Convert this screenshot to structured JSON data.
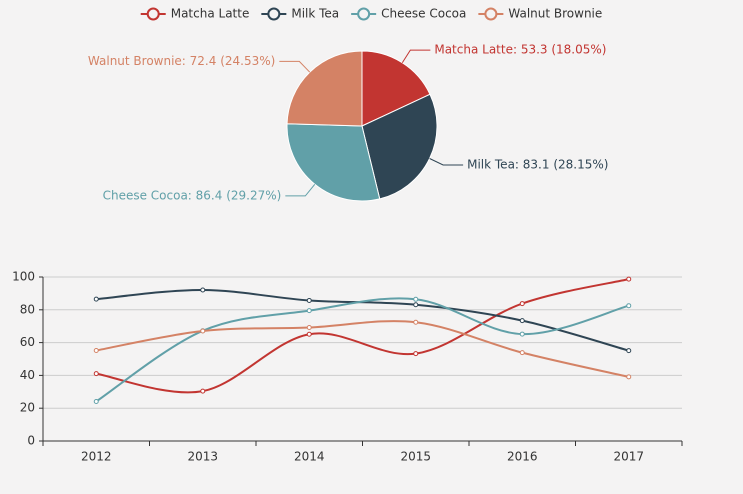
{
  "chart_data": [
    {
      "type": "pie",
      "values": [
        53.3,
        83.1,
        86.4,
        72.4
      ],
      "value_labels": [
        "Matcha Latte: 53.3 (18.05%)",
        "Milk Tea: 83.1 (28.15%)",
        "Cheese Cocoa: 86.4 (29.27%)",
        "Walnut Brownie: 72.4 (24.53%)"
      ],
      "colors": [
        "#c23531",
        "#2f4554",
        "#61a0a8",
        "#d48265"
      ]
    },
    {
      "type": "line",
      "categories": [
        "2012",
        "2013",
        "2014",
        "2015",
        "2016",
        "2017"
      ],
      "series": [
        {
          "name": "Matcha Latte",
          "color": "#c23531",
          "values": [
            41.1,
            30.4,
            65.1,
            53.3,
            83.8,
            98.7
          ]
        },
        {
          "name": "Milk Tea",
          "color": "#2f4554",
          "values": [
            86.5,
            92.1,
            85.7,
            83.1,
            73.4,
            55.1
          ]
        },
        {
          "name": "Cheese Cocoa",
          "color": "#61a0a8",
          "values": [
            24.1,
            67.2,
            79.5,
            86.4,
            65.2,
            82.5
          ]
        },
        {
          "name": "Walnut Brownie",
          "color": "#d48265",
          "values": [
            55.2,
            67.1,
            69.2,
            72.4,
            53.9,
            39.1
          ]
        }
      ],
      "ylim": [
        0,
        100
      ],
      "yticks": [
        0,
        20,
        40,
        60,
        80,
        100
      ],
      "grid": true
    }
  ]
}
